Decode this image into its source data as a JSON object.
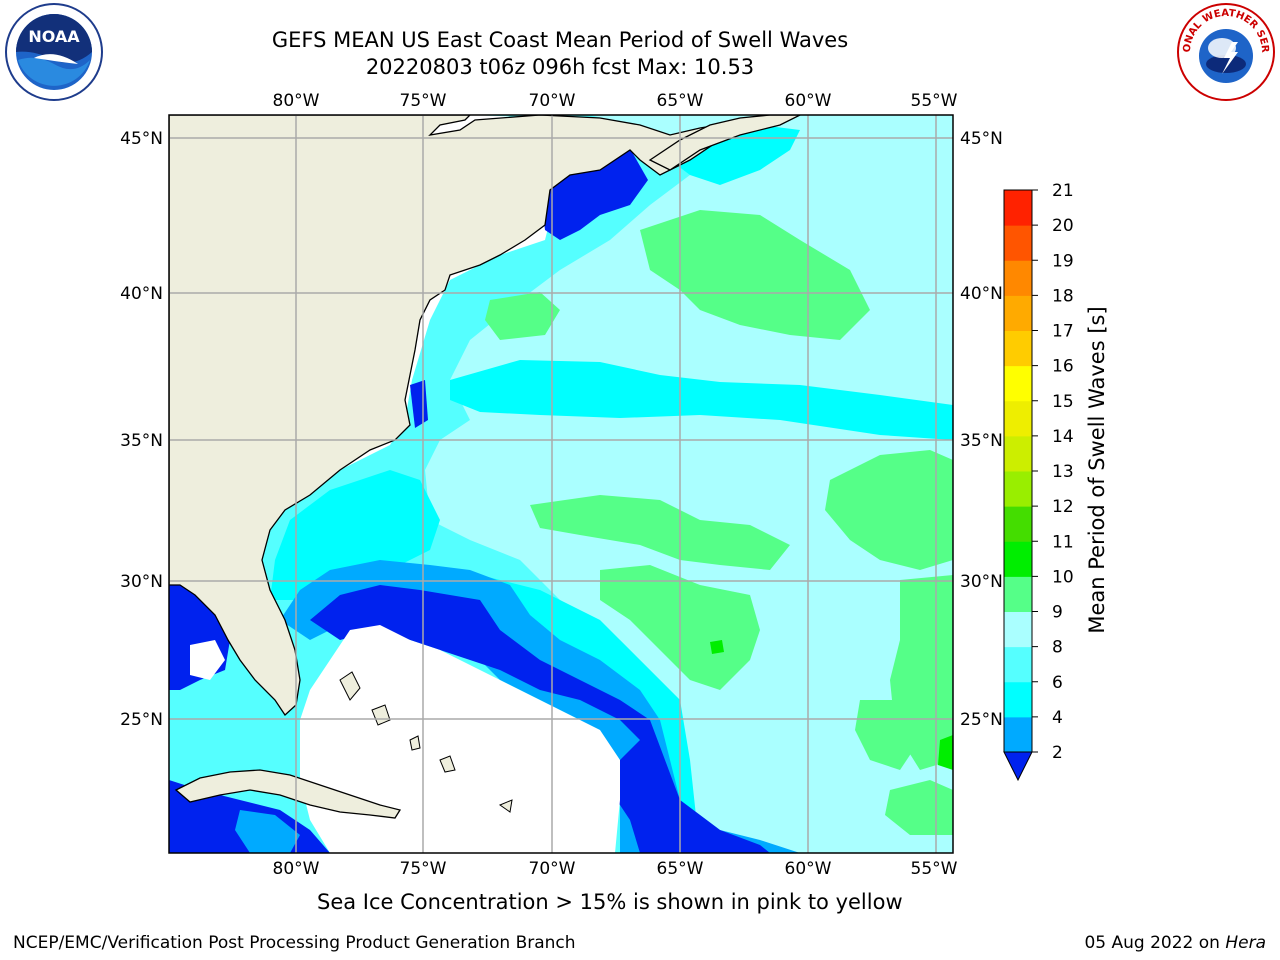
{
  "title": {
    "line1": "GEFS MEAN US East Coast Mean Period of Swell Waves",
    "line2": "20220803 t06z 096h fcst   Max: 10.53"
  },
  "logos": {
    "left": "NOAA",
    "right": "NATIONAL WEATHER SERVICE"
  },
  "chart_data": {
    "type": "heatmap",
    "title": "GEFS MEAN US East Coast Mean Period of Swell Waves",
    "subtitle": "20220803 t06z 096h fcst   Max: 10.53",
    "max_value": 10.53,
    "x_ticks": [
      "80°W",
      "75°W",
      "70°W",
      "65°W",
      "60°W",
      "55°W"
    ],
    "y_ticks": [
      "45°N",
      "40°N",
      "35°N",
      "30°N",
      "25°N"
    ],
    "colorbar": {
      "label": "Mean Period of Swell Waves [s]",
      "levels": [
        "2",
        "4",
        "6",
        "8",
        "9",
        "10",
        "11",
        "12",
        "13",
        "14",
        "15",
        "16",
        "17",
        "18",
        "19",
        "20",
        "21"
      ],
      "colors": [
        "#0022ee",
        "#00aaff",
        "#00ffff",
        "#55ffff",
        "#aaffff",
        "#55ff88",
        "#00ee00",
        "#44dd00",
        "#99ee00",
        "#ccee00",
        "#eeee00",
        "#ffff00",
        "#ffcc00",
        "#ffaa00",
        "#ff8800",
        "#ff5500",
        "#ff2200",
        "#ff0000"
      ]
    },
    "grid": true
  },
  "footer": {
    "note": "Sea Ice Concentration > 15% is shown in pink to yellow",
    "credit": "NCEP/EMC/Verification Post Processing Product Generation Branch",
    "date": "05 Aug 2022 on",
    "host": "Hera"
  }
}
